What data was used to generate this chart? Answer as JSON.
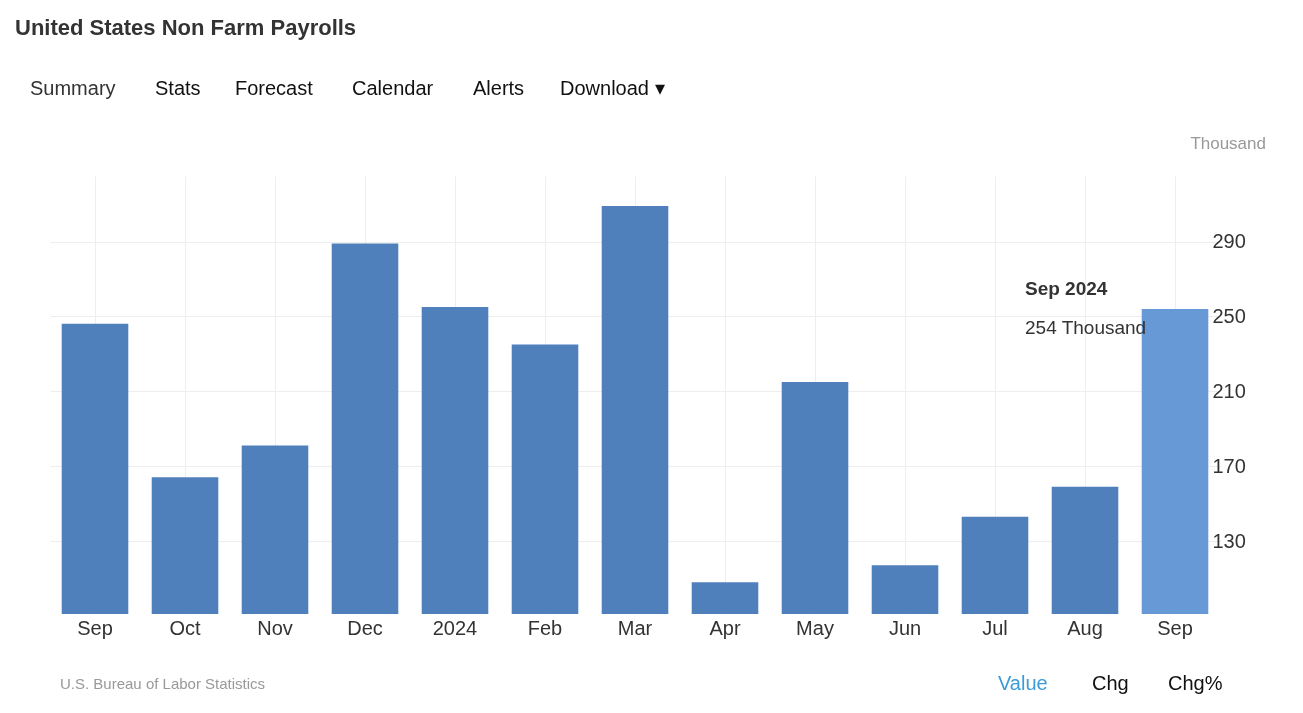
{
  "chart_data": {
    "type": "bar",
    "title": "United States Non Farm Payrolls",
    "ylabel": "Thousand",
    "categories": [
      "Sep",
      "Oct",
      "Nov",
      "Dec",
      "2024",
      "Feb",
      "Mar",
      "Apr",
      "May",
      "Jun",
      "Jul",
      "Aug",
      "Sep"
    ],
    "values": [
      246,
      164,
      181,
      289,
      255,
      235,
      309,
      108,
      215,
      117,
      143,
      159,
      254
    ],
    "colors": [
      "#4f80bc",
      "#4f80bc",
      "#4f80bc",
      "#4f80bc",
      "#4f80bc",
      "#4f80bc",
      "#4f80bc",
      "#4f80bc",
      "#4f80bc",
      "#4f80bc",
      "#4f80bc",
      "#4f80bc",
      "#6699d6"
    ],
    "ylim": [
      91,
      325
    ],
    "yticks": [
      130,
      170,
      210,
      250,
      290
    ],
    "grid": true,
    "annotations": [
      "Summary",
      "Stats",
      "Forecast",
      "Calendar",
      "Alerts",
      "Download ▾",
      "U.S. Bureau of Labor Statistics",
      "Value",
      "Chg",
      "Chg%",
      "Sep 2024",
      "254 Thousand"
    ]
  }
}
